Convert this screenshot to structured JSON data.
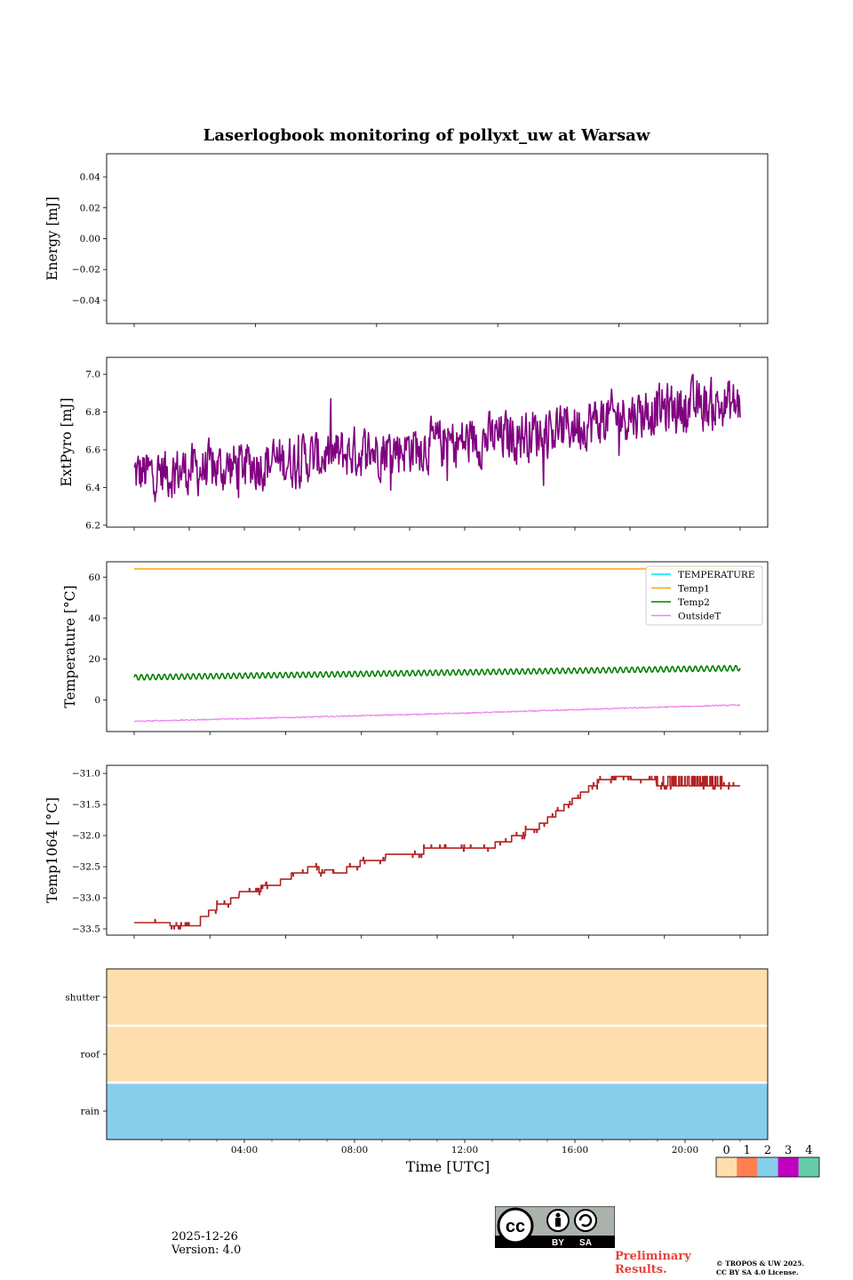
{
  "title": "Laserlogbook monitoring of pollyxt_uw at Warsaw",
  "chart_data": [
    {
      "type": "line",
      "name": "energy",
      "ylabel": "Energy [mJ]",
      "ylim": [
        -0.055,
        0.055
      ],
      "yticks": [
        -0.04,
        -0.02,
        0.0,
        0.02,
        0.04
      ],
      "yticklabels": [
        "−0.04",
        "−0.02",
        "0.00",
        "0.02",
        "0.04"
      ],
      "series": []
    },
    {
      "type": "line",
      "name": "extpyro",
      "ylabel": "ExtPyro [mJ]",
      "ylim": [
        6.19,
        7.09
      ],
      "yticks": [
        6.2,
        6.4,
        6.6,
        6.8,
        7.0
      ],
      "yticklabels": [
        "6.2",
        "6.4",
        "6.6",
        "6.8",
        "7.0"
      ],
      "series": [
        {
          "name": "ExtPyro",
          "color": "#800080",
          "trend_x": [
            0.0,
            3.0,
            6.0,
            9.0,
            12.0,
            15.0,
            18.0,
            20.0,
            22.0
          ],
          "trend_y": [
            6.47,
            6.5,
            6.55,
            6.6,
            6.64,
            6.7,
            6.79,
            6.83,
            6.84
          ],
          "noise": 0.075
        }
      ]
    },
    {
      "type": "line",
      "name": "temperature",
      "ylabel": "Temperature [°C]",
      "ylim": [
        -15.5,
        67.5
      ],
      "yticks": [
        0,
        20,
        40,
        60
      ],
      "yticklabels": [
        "0",
        "20",
        "40",
        "60"
      ],
      "legend": [
        "TEMPERATURE",
        "Temp1",
        "Temp2",
        "OutsideT"
      ],
      "series": [
        {
          "name": "TEMPERATURE",
          "color": "#00e5ee",
          "x": [],
          "y": []
        },
        {
          "name": "Temp1",
          "color": "#ffa500",
          "x": [
            0,
            22
          ],
          "y": [
            64,
            64
          ]
        },
        {
          "name": "Temp2",
          "color": "#008000",
          "trend_x": [
            0,
            22
          ],
          "trend_y": [
            11,
            15.5
          ],
          "osc_amp": 1.3,
          "cycles": 105
        },
        {
          "name": "OutsideT",
          "color": "#ee82ee",
          "trend_x": [
            0,
            6,
            12,
            18,
            22
          ],
          "trend_y": [
            -10.5,
            -8.5,
            -6.5,
            -4.0,
            -2.5
          ]
        }
      ]
    },
    {
      "type": "line",
      "name": "temp1064",
      "ylabel": "Temp1064 [°C]",
      "ylim": [
        -33.6,
        -30.87
      ],
      "yticks": [
        -33.5,
        -33.0,
        -32.5,
        -32.0,
        -31.5,
        -31.0
      ],
      "yticklabels": [
        "−33.5",
        "−33.0",
        "−32.5",
        "−32.0",
        "−31.5",
        "−31.0"
      ],
      "series": [
        {
          "name": "Temp1064",
          "color": "#b22222",
          "x": [
            0,
            1.2,
            1.3,
            2.4,
            2.7,
            3.0,
            3.5,
            3.8,
            4.1,
            4.3,
            4.6,
            5.0,
            5.3,
            5.7,
            6.0,
            6.3,
            6.7,
            6.9,
            7.2,
            7.7,
            8.2,
            8.7,
            9.1,
            9.6,
            10.0,
            10.5,
            11.0,
            11.6,
            12.1,
            12.6,
            13.1,
            13.7,
            14.2,
            14.7,
            15.0,
            15.3,
            15.6,
            15.9,
            16.2,
            16.5,
            16.8,
            17.1,
            17.4,
            17.7,
            18.0,
            18.3,
            18.6,
            18.9,
            19.3,
            20.0,
            21.0,
            21.4,
            21.5,
            22.0
          ],
          "y": [
            -33.4,
            -33.4,
            -33.45,
            -33.3,
            -33.2,
            -33.1,
            -33.0,
            -32.9,
            -32.9,
            -32.9,
            -32.8,
            -32.8,
            -32.7,
            -32.6,
            -32.6,
            -32.5,
            -32.6,
            -32.55,
            -32.6,
            -32.5,
            -32.4,
            -32.4,
            -32.3,
            -32.3,
            -32.3,
            -32.2,
            -32.2,
            -32.2,
            -32.2,
            -32.2,
            -32.1,
            -32.0,
            -31.9,
            -31.8,
            -31.7,
            -31.6,
            -31.5,
            -31.4,
            -31.3,
            -31.2,
            -31.1,
            -31.1,
            -31.05,
            -31.05,
            -31.1,
            -31.1,
            -31.1,
            -31.2,
            -31.2,
            -31.2,
            -31.2,
            -31.2,
            -31.2,
            -31.2
          ],
          "noise": 0.03
        }
      ]
    },
    {
      "type": "heatmap",
      "name": "status",
      "rows": [
        "rain",
        "roof",
        "shutter"
      ],
      "row_values": [
        2,
        0,
        0
      ],
      "xlabel": "Time [UTC]",
      "xticks": [
        4,
        8,
        12,
        16,
        20
      ],
      "xticklabels": [
        "04:00",
        "08:00",
        "12:00",
        "16:00",
        "20:00"
      ],
      "colorbar": {
        "labels": [
          "0",
          "1",
          "2",
          "3",
          "4"
        ],
        "colors": [
          "#ffdead",
          "#ff7f50",
          "#87ceeb",
          "#c000c0",
          "#66cdaa"
        ]
      }
    }
  ],
  "x_range_hours": [
    -1.0,
    23.0
  ],
  "footer": {
    "date": "2025-12-26",
    "version": "Version: 4.0",
    "preliminary_line1": "Preliminary",
    "preliminary_line2": "Results.",
    "copyright_line1": "© TROPOS & UW 2025.",
    "copyright_line2": "CC BY SA 4.0 License.",
    "cc_labels": [
      "BY",
      "SA"
    ],
    "cc_logo_text": "cc"
  }
}
